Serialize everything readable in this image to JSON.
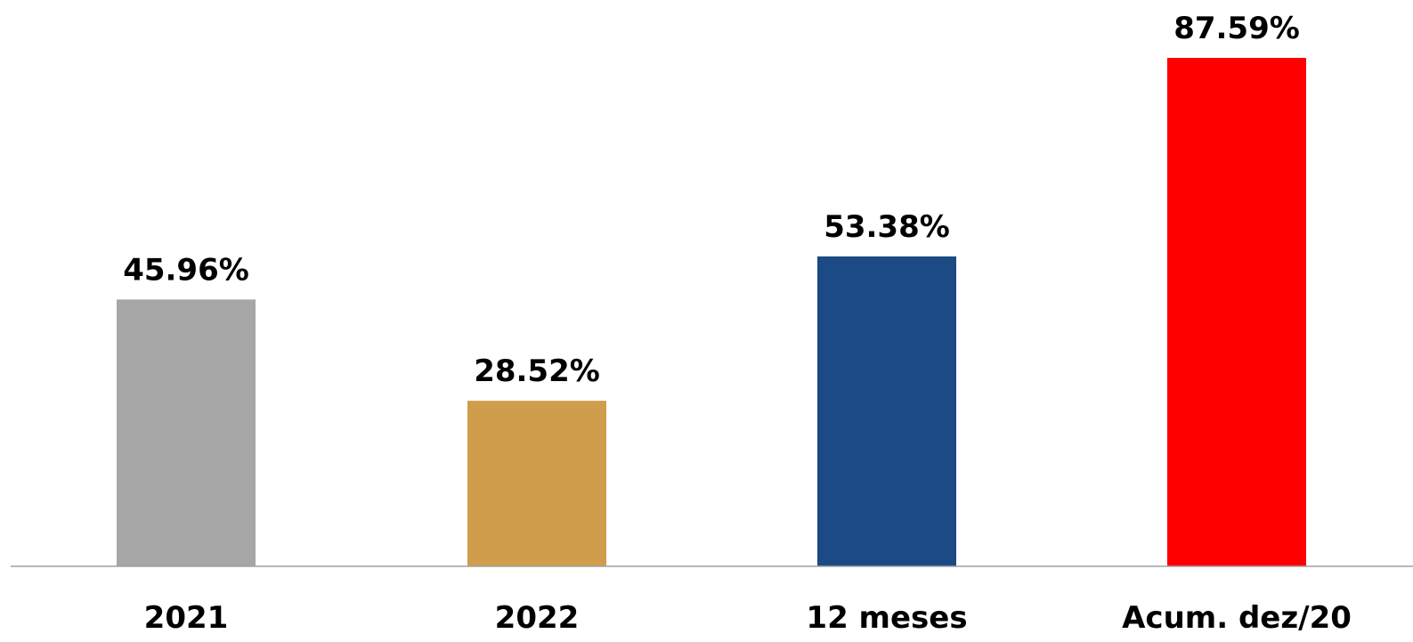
{
  "chart_data": {
    "type": "bar",
    "categories": [
      "2021",
      "2022",
      "12 meses",
      "Acum. dez/20"
    ],
    "values": [
      45.96,
      28.52,
      53.38,
      87.59
    ],
    "value_labels": [
      "45.96%",
      "28.52%",
      "53.38%",
      "87.59%"
    ],
    "colors": [
      "#a6a6a6",
      "#d09d4c",
      "#1b4a84",
      "#ff0000"
    ],
    "axis_color": "#a0a0a0",
    "title": "",
    "xlabel": "",
    "ylabel": "",
    "ylim": [
      0,
      87.59
    ],
    "grid": false,
    "legend": "none"
  }
}
